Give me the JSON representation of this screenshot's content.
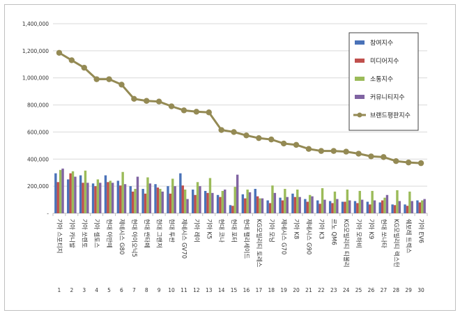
{
  "chart_data": {
    "type": "bar",
    "title": "",
    "xlabel": "",
    "ylabel": "",
    "ylim": [
      0,
      1400000
    ],
    "ytick_labels": [
      "-",
      "200,000",
      "400,000",
      "600,000",
      "800,000",
      "1,000,000",
      "1,200,000",
      "1,400,000"
    ],
    "grid": true,
    "legend_position": "top-right",
    "categories": [
      "기아 스포티지",
      "기아 카니발",
      "기아 쏘렌토",
      "기아 셀토스",
      "현대 아반떼",
      "제네시스 G80",
      "현대 아이오닉5",
      "현대 싼타페",
      "현대 그랜저",
      "현대 투싼",
      "제네시스 GV70",
      "기아 레이",
      "기아 K5",
      "현대 코나",
      "현대 포터",
      "현대 팰리세이드",
      "KG모빌리티 토레스",
      "기아 모닝",
      "제네시스 G70",
      "기아 K8",
      "제네시스 G90",
      "기아 K3",
      "르노 QM6",
      "KG모빌리티 티볼리",
      "기아 모하비",
      "기아 K9",
      "현대 쏘나타",
      "KG모빌리티 렉스턴",
      "쉐보레 트렉스",
      "기아 EV6"
    ],
    "ranks": [
      "1",
      "2",
      "3",
      "4",
      "5",
      "6",
      "7",
      "8",
      "9",
      "10",
      "11",
      "12",
      "13",
      "14",
      "15",
      "16",
      "17",
      "18",
      "19",
      "20",
      "21",
      "22",
      "23",
      "24",
      "25",
      "26",
      "27",
      "28",
      "29",
      "30"
    ],
    "series": [
      {
        "name": "참여지수",
        "kind": "bar",
        "color": "#4a72b8",
        "values": [
          295000,
          250000,
          280000,
          220000,
          280000,
          240000,
          200000,
          180000,
          215000,
          200000,
          295000,
          175000,
          165000,
          135000,
          60000,
          140000,
          180000,
          95000,
          115000,
          145000,
          105000,
          95000,
          90000,
          85000,
          90000,
          85000,
          80000,
          65000,
          65000,
          95000
        ]
      },
      {
        "name": "미디어지수",
        "kind": "bar",
        "color": "#c0504d",
        "values": [
          230000,
          295000,
          225000,
          200000,
          230000,
          205000,
          160000,
          145000,
          190000,
          145000,
          205000,
          135000,
          150000,
          120000,
          55000,
          110000,
          125000,
          75000,
          95000,
          120000,
          85000,
          70000,
          75000,
          85000,
          75000,
          65000,
          95000,
          60000,
          55000,
          80000
        ]
      },
      {
        "name": "소통지수",
        "kind": "bar",
        "color": "#9bbb59",
        "values": [
          320000,
          310000,
          315000,
          250000,
          240000,
          305000,
          180000,
          265000,
          180000,
          255000,
          175000,
          230000,
          260000,
          165000,
          195000,
          175000,
          110000,
          205000,
          180000,
          175000,
          135000,
          185000,
          160000,
          175000,
          165000,
          165000,
          115000,
          170000,
          160000,
          95000
        ]
      },
      {
        "name": "커뮤니티지수",
        "kind": "bar",
        "color": "#8064a2",
        "values": [
          330000,
          270000,
          225000,
          225000,
          225000,
          215000,
          270000,
          220000,
          160000,
          200000,
          105000,
          200000,
          150000,
          175000,
          285000,
          155000,
          110000,
          150000,
          120000,
          120000,
          125000,
          100000,
          105000,
          95000,
          100000,
          95000,
          135000,
          90000,
          90000,
          105000
        ]
      },
      {
        "name": "브랜드평판지수",
        "kind": "line",
        "color": "#948a54",
        "values": [
          1185000,
          1130000,
          1075000,
          990000,
          990000,
          950000,
          845000,
          830000,
          825000,
          790000,
          760000,
          750000,
          745000,
          615000,
          600000,
          575000,
          555000,
          545000,
          515000,
          505000,
          475000,
          460000,
          460000,
          455000,
          440000,
          420000,
          415000,
          385000,
          375000,
          370000
        ]
      }
    ]
  }
}
